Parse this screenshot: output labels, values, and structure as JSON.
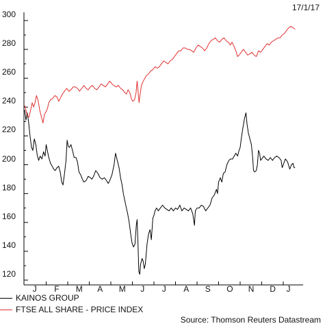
{
  "date_stamp": "17/1/17",
  "source": "Source: Thomson Reuters Datastream",
  "chart_data": {
    "type": "line",
    "title": "",
    "xlabel": "",
    "ylabel": "",
    "ylim": [
      118,
      302
    ],
    "yticks": [
      120,
      140,
      160,
      180,
      200,
      220,
      240,
      260,
      280,
      300
    ],
    "months": [
      "J",
      "F",
      "M",
      "A",
      "M",
      "J",
      "J",
      "A",
      "S",
      "O",
      "N",
      "D",
      "J"
    ],
    "grid": false,
    "legend_position": "bottom-left",
    "x_unit": "months since start of January 2016 (0 = Jan 1, 2016; 12.55 = 17 Jan 2017)",
    "series": [
      {
        "name": "KAINOS GROUP",
        "color": "#000000",
        "points": [
          [
            0.0,
            238
          ],
          [
            0.06,
            231
          ],
          [
            0.12,
            236
          ],
          [
            0.18,
            230
          ],
          [
            0.25,
            220
          ],
          [
            0.32,
            212
          ],
          [
            0.38,
            210
          ],
          [
            0.45,
            218
          ],
          [
            0.52,
            214
          ],
          [
            0.58,
            207
          ],
          [
            0.65,
            203
          ],
          [
            0.72,
            206
          ],
          [
            0.8,
            204
          ],
          [
            0.88,
            209
          ],
          [
            0.95,
            206
          ],
          [
            1.0,
            214
          ],
          [
            1.05,
            210
          ],
          [
            1.12,
            205
          ],
          [
            1.2,
            201
          ],
          [
            1.28,
            199
          ],
          [
            1.35,
            197
          ],
          [
            1.42,
            196
          ],
          [
            1.5,
            198
          ],
          [
            1.58,
            199
          ],
          [
            1.65,
            195
          ],
          [
            1.72,
            188
          ],
          [
            1.78,
            186
          ],
          [
            1.85,
            194
          ],
          [
            1.92,
            203
          ],
          [
            1.97,
            217
          ],
          [
            2.02,
            213
          ],
          [
            2.08,
            212
          ],
          [
            2.15,
            214
          ],
          [
            2.22,
            210
          ],
          [
            2.3,
            205
          ],
          [
            2.38,
            205
          ],
          [
            2.45,
            202
          ],
          [
            2.52,
            195
          ],
          [
            2.6,
            193
          ],
          [
            2.68,
            190
          ],
          [
            2.75,
            188
          ],
          [
            2.85,
            189
          ],
          [
            2.95,
            192
          ],
          [
            3.05,
            191
          ],
          [
            3.12,
            190
          ],
          [
            3.2,
            192
          ],
          [
            3.3,
            196
          ],
          [
            3.4,
            194
          ],
          [
            3.5,
            191
          ],
          [
            3.6,
            190
          ],
          [
            3.7,
            191
          ],
          [
            3.8,
            189
          ],
          [
            3.88,
            187
          ],
          [
            3.95,
            189
          ],
          [
            4.05,
            193
          ],
          [
            4.15,
            200
          ],
          [
            4.22,
            208
          ],
          [
            4.3,
            203
          ],
          [
            4.38,
            198
          ],
          [
            4.45,
            191
          ],
          [
            4.52,
            186
          ],
          [
            4.58,
            180
          ],
          [
            4.65,
            175
          ],
          [
            4.72,
            170
          ],
          [
            4.78,
            166
          ],
          [
            4.85,
            160
          ],
          [
            4.92,
            152
          ],
          [
            4.98,
            146
          ],
          [
            5.05,
            143
          ],
          [
            5.12,
            145
          ],
          [
            5.18,
            158
          ],
          [
            5.22,
            162
          ],
          [
            5.26,
            145
          ],
          [
            5.3,
            126
          ],
          [
            5.34,
            124
          ],
          [
            5.38,
            131
          ],
          [
            5.45,
            135
          ],
          [
            5.5,
            133
          ],
          [
            5.55,
            128
          ],
          [
            5.6,
            131
          ],
          [
            5.68,
            145
          ],
          [
            5.75,
            152
          ],
          [
            5.82,
            155
          ],
          [
            5.88,
            148
          ],
          [
            5.95,
            163
          ],
          [
            6.0,
            165
          ],
          [
            6.05,
            168
          ],
          [
            6.12,
            170
          ],
          [
            6.2,
            168
          ],
          [
            6.3,
            170
          ],
          [
            6.4,
            172
          ],
          [
            6.5,
            170
          ],
          [
            6.6,
            169
          ],
          [
            6.7,
            168
          ],
          [
            6.8,
            170
          ],
          [
            6.9,
            168
          ],
          [
            7.0,
            170
          ],
          [
            7.1,
            169
          ],
          [
            7.2,
            172
          ],
          [
            7.3,
            168
          ],
          [
            7.4,
            170
          ],
          [
            7.5,
            169
          ],
          [
            7.6,
            168
          ],
          [
            7.7,
            170
          ],
          [
            7.8,
            166
          ],
          [
            7.88,
            158
          ],
          [
            7.92,
            168
          ],
          [
            8.0,
            170
          ],
          [
            8.1,
            170
          ],
          [
            8.2,
            172
          ],
          [
            8.3,
            171
          ],
          [
            8.4,
            168
          ],
          [
            8.5,
            170
          ],
          [
            8.6,
            172
          ],
          [
            8.7,
            177
          ],
          [
            8.8,
            179
          ],
          [
            8.9,
            183
          ],
          [
            8.95,
            180
          ],
          [
            9.0,
            188
          ],
          [
            9.08,
            191
          ],
          [
            9.15,
            188
          ],
          [
            9.22,
            194
          ],
          [
            9.3,
            195
          ],
          [
            9.38,
            200
          ],
          [
            9.48,
            203
          ],
          [
            9.55,
            204
          ],
          [
            9.65,
            204
          ],
          [
            9.72,
            206
          ],
          [
            9.8,
            208
          ],
          [
            9.88,
            206
          ],
          [
            9.95,
            210
          ],
          [
            10.0,
            212
          ],
          [
            10.05,
            218
          ],
          [
            10.12,
            225
          ],
          [
            10.2,
            232
          ],
          [
            10.27,
            236
          ],
          [
            10.32,
            228
          ],
          [
            10.38,
            222
          ],
          [
            10.45,
            218
          ],
          [
            10.52,
            214
          ],
          [
            10.58,
            205
          ],
          [
            10.62,
            196
          ],
          [
            10.67,
            195
          ],
          [
            10.75,
            196
          ],
          [
            10.8,
            200
          ],
          [
            10.85,
            210
          ],
          [
            10.9,
            208
          ],
          [
            10.95,
            203
          ],
          [
            11.0,
            204
          ],
          [
            11.1,
            206
          ],
          [
            11.2,
            204
          ],
          [
            11.3,
            203
          ],
          [
            11.4,
            205
          ],
          [
            11.5,
            203
          ],
          [
            11.6,
            205
          ],
          [
            11.7,
            206
          ],
          [
            11.8,
            205
          ],
          [
            11.9,
            203
          ],
          [
            11.95,
            198
          ],
          [
            12.0,
            200
          ],
          [
            12.05,
            202
          ],
          [
            12.1,
            204
          ],
          [
            12.2,
            202
          ],
          [
            12.3,
            197
          ],
          [
            12.38,
            200
          ],
          [
            12.45,
            201
          ],
          [
            12.5,
            198
          ],
          [
            12.55,
            198
          ]
        ]
      },
      {
        "name": "FTSE ALL SHARE - PRICE INDEX",
        "color": "#e03030",
        "points": [
          [
            0.0,
            241
          ],
          [
            0.06,
            238
          ],
          [
            0.12,
            234
          ],
          [
            0.2,
            233
          ],
          [
            0.28,
            238
          ],
          [
            0.35,
            243
          ],
          [
            0.42,
            240
          ],
          [
            0.48,
            243
          ],
          [
            0.55,
            248
          ],
          [
            0.62,
            245
          ],
          [
            0.7,
            238
          ],
          [
            0.78,
            233
          ],
          [
            0.85,
            229
          ],
          [
            0.92,
            235
          ],
          [
            1.0,
            237
          ],
          [
            1.06,
            239
          ],
          [
            1.12,
            243
          ],
          [
            1.2,
            245
          ],
          [
            1.3,
            246
          ],
          [
            1.4,
            248
          ],
          [
            1.5,
            247
          ],
          [
            1.58,
            244
          ],
          [
            1.65,
            246
          ],
          [
            1.75,
            249
          ],
          [
            1.85,
            251
          ],
          [
            1.95,
            253
          ],
          [
            2.05,
            251
          ],
          [
            2.15,
            252
          ],
          [
            2.25,
            254
          ],
          [
            2.35,
            254
          ],
          [
            2.45,
            253
          ],
          [
            2.55,
            251
          ],
          [
            2.65,
            253
          ],
          [
            2.75,
            255
          ],
          [
            2.85,
            253
          ],
          [
            2.95,
            252
          ],
          [
            3.05,
            254
          ],
          [
            3.15,
            255
          ],
          [
            3.25,
            253
          ],
          [
            3.35,
            252
          ],
          [
            3.45,
            254
          ],
          [
            3.55,
            256
          ],
          [
            3.65,
            255
          ],
          [
            3.75,
            254
          ],
          [
            3.85,
            256
          ],
          [
            3.95,
            258
          ],
          [
            4.05,
            256
          ],
          [
            4.15,
            255
          ],
          [
            4.25,
            254
          ],
          [
            4.35,
            255
          ],
          [
            4.45,
            253
          ],
          [
            4.55,
            252
          ],
          [
            4.65,
            250
          ],
          [
            4.72,
            249
          ],
          [
            4.8,
            252
          ],
          [
            4.88,
            250
          ],
          [
            4.95,
            246
          ],
          [
            5.02,
            244
          ],
          [
            5.1,
            245
          ],
          [
            5.17,
            250
          ],
          [
            5.22,
            258
          ],
          [
            5.27,
            250
          ],
          [
            5.31,
            243
          ],
          [
            5.35,
            248
          ],
          [
            5.42,
            255
          ],
          [
            5.5,
            258
          ],
          [
            5.58,
            260
          ],
          [
            5.66,
            262
          ],
          [
            5.75,
            263
          ],
          [
            5.85,
            265
          ],
          [
            5.95,
            266
          ],
          [
            6.05,
            268
          ],
          [
            6.15,
            267
          ],
          [
            6.25,
            268
          ],
          [
            6.35,
            270
          ],
          [
            6.45,
            272
          ],
          [
            6.55,
            271
          ],
          [
            6.65,
            270
          ],
          [
            6.75,
            272
          ],
          [
            6.85,
            273
          ],
          [
            6.95,
            275
          ],
          [
            7.05,
            277
          ],
          [
            7.15,
            279
          ],
          [
            7.25,
            279
          ],
          [
            7.35,
            281
          ],
          [
            7.45,
            281
          ],
          [
            7.55,
            280
          ],
          [
            7.65,
            280
          ],
          [
            7.75,
            279
          ],
          [
            7.85,
            278
          ],
          [
            7.95,
            281
          ],
          [
            8.05,
            283
          ],
          [
            8.15,
            282
          ],
          [
            8.25,
            281
          ],
          [
            8.35,
            279
          ],
          [
            8.45,
            281
          ],
          [
            8.55,
            284
          ],
          [
            8.65,
            286
          ],
          [
            8.75,
            287
          ],
          [
            8.85,
            288
          ],
          [
            8.95,
            286
          ],
          [
            9.05,
            285
          ],
          [
            9.15,
            287
          ],
          [
            9.25,
            288
          ],
          [
            9.35,
            286
          ],
          [
            9.45,
            285
          ],
          [
            9.55,
            283
          ],
          [
            9.62,
            285
          ],
          [
            9.72,
            282
          ],
          [
            9.8,
            279
          ],
          [
            9.88,
            275
          ],
          [
            9.95,
            276
          ],
          [
            10.05,
            278
          ],
          [
            10.15,
            280
          ],
          [
            10.25,
            278
          ],
          [
            10.35,
            276
          ],
          [
            10.45,
            277
          ],
          [
            10.55,
            278
          ],
          [
            10.65,
            276
          ],
          [
            10.75,
            275
          ],
          [
            10.85,
            279
          ],
          [
            10.95,
            278
          ],
          [
            11.05,
            280
          ],
          [
            11.15,
            282
          ],
          [
            11.25,
            284
          ],
          [
            11.35,
            283
          ],
          [
            11.45,
            285
          ],
          [
            11.55,
            286
          ],
          [
            11.65,
            287
          ],
          [
            11.75,
            288
          ],
          [
            11.85,
            288
          ],
          [
            11.95,
            290
          ],
          [
            12.05,
            291
          ],
          [
            12.15,
            293
          ],
          [
            12.25,
            295
          ],
          [
            12.35,
            296
          ],
          [
            12.45,
            295
          ],
          [
            12.55,
            294
          ]
        ]
      }
    ]
  }
}
